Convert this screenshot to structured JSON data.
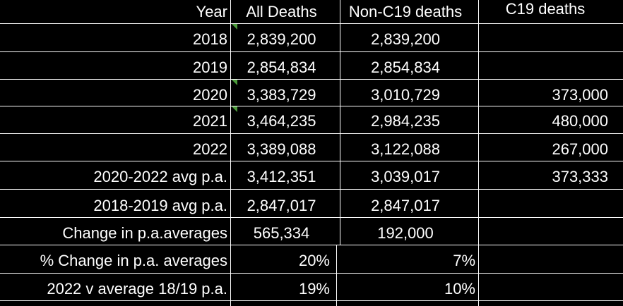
{
  "table": {
    "headers": [
      "Year",
      "All Deaths",
      "Non-C19 deaths",
      "C19 deaths"
    ],
    "rows": [
      [
        "2018",
        "2,839,200",
        "2,839,200",
        ""
      ],
      [
        "2019",
        "2,854,834",
        "2,854,834",
        ""
      ],
      [
        "2020",
        "3,383,729",
        "3,010,729",
        "373,000"
      ],
      [
        "2021",
        "3,464,235",
        "2,984,235",
        "480,000"
      ],
      [
        "2022",
        "3,389,088",
        "3,122,088",
        "267,000"
      ],
      [
        "2020-2022 avg p.a.",
        "3,412,351",
        "3,039,017",
        "373,333"
      ],
      [
        "2018-2019 avg p.a.",
        "2,847,017",
        "2,847,017",
        ""
      ],
      [
        "Change in p.a.averages",
        "565,334",
        "192,000",
        ""
      ],
      [
        "% Change in p.a. averages",
        "20%",
        "7%",
        ""
      ],
      [
        "2022 v average 18/19 p.a.",
        "19%",
        "10%",
        ""
      ]
    ]
  },
  "colors": {
    "background": "#000000",
    "text": "#ffffff",
    "gridline": "#ffffff",
    "cell_marker": "#4a9a3a"
  }
}
